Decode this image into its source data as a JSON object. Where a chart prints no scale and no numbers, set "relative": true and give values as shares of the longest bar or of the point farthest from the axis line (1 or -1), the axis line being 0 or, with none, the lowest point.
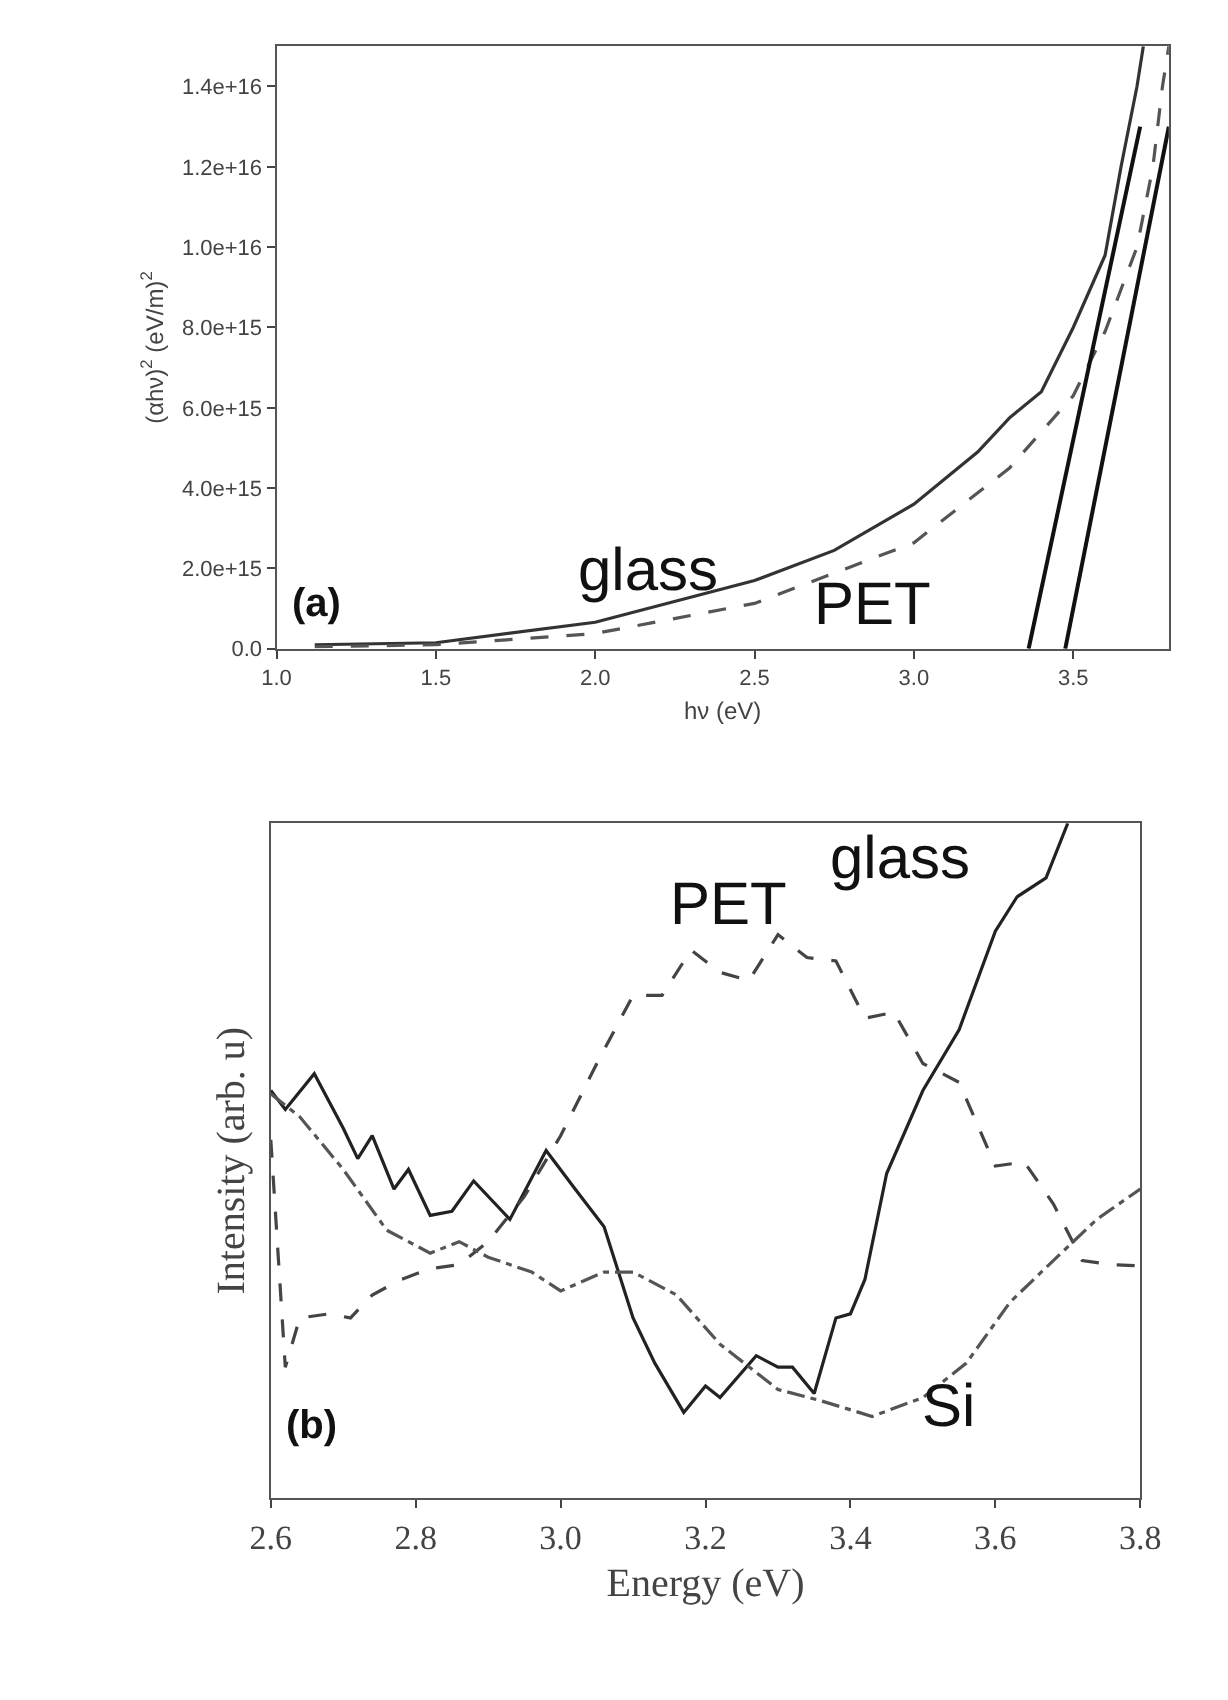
{
  "chart_data": [
    {
      "type": "line",
      "xlabel": "hν (eV)",
      "ylabel": "(αhν)$^{2}$ (eV/m)$^{2}$",
      "xlim": [
        1.0,
        3.8
      ],
      "ylim": [
        0,
        1.5e+16
      ],
      "xticks": [
        {
          "value": 1.0,
          "label": "1.0"
        },
        {
          "value": 1.5,
          "label": "1.5"
        },
        {
          "value": 2.0,
          "label": "2.0"
        },
        {
          "value": 2.5,
          "label": "2.5"
        },
        {
          "value": 3.0,
          "label": "3.0"
        },
        {
          "value": 3.5,
          "label": "3.5"
        }
      ],
      "yticks": [
        {
          "value": 0,
          "label": "0.0"
        },
        {
          "value": 2000000000000000.0,
          "label": "2.0e+15"
        },
        {
          "value": 4000000000000000.0,
          "label": "4.0e+15"
        },
        {
          "value": 6000000000000000.0,
          "label": "6.0e+15"
        },
        {
          "value": 8000000000000000.0,
          "label": "8.0e+15"
        },
        {
          "value": 1e+16,
          "label": "1.0e+16"
        },
        {
          "value": 1.2e+16,
          "label": "1.2e+16"
        },
        {
          "value": 1.4e+16,
          "label": "1.4e+16"
        }
      ],
      "marker": "none",
      "annotations": [
        "(a)"
      ],
      "series": [
        {
          "name": "glass",
          "color": "#333333",
          "line_style": "solid",
          "x": [
            1.12,
            1.5,
            2.0,
            2.5,
            2.75,
            3.0,
            3.2,
            3.3,
            3.4,
            3.5,
            3.6,
            3.65,
            3.7,
            3.72
          ],
          "values": [
            100000000000000.0,
            150000000000000.0,
            660000000000000.0,
            1700000000000000.0,
            2450000000000000.0,
            3600000000000000.0,
            4900000000000000.0,
            5750000000000000.0,
            6400000000000000.0,
            8000000000000000.0,
            9800000000000000.0,
            1.2e+16,
            1.4e+16,
            1.5e+16
          ]
        },
        {
          "name": "PET",
          "color": "#555555",
          "line_style": "dashed",
          "x": [
            1.12,
            1.5,
            2.0,
            2.5,
            3.0,
            3.3,
            3.5,
            3.6,
            3.7,
            3.75,
            3.78,
            3.8
          ],
          "values": [
            50000000000000.0,
            100000000000000.0,
            380000000000000.0,
            1130000000000000.0,
            2640000000000000.0,
            4500000000000000.0,
            6300000000000000.0,
            7900000000000000.0,
            1e+16,
            1.2e+16,
            1.4e+16,
            1.5e+16
          ]
        },
        {
          "color": "#111111",
          "line_style": "solid",
          "x": [
            3.36,
            3.71
          ],
          "values": [
            0,
            1.3e+16
          ]
        },
        {
          "color": "#111111",
          "line_style": "solid",
          "x": [
            3.475,
            3.8
          ],
          "values": [
            0,
            1.3e+16
          ]
        }
      ]
    },
    {
      "type": "line",
      "xlabel": "Energy (eV)",
      "ylabel": "Intensity (arb. u)",
      "relative": true,
      "xlim": [
        2.6,
        3.8
      ],
      "xticks": [
        {
          "value": 2.6,
          "label": "2.6"
        },
        {
          "value": 2.8,
          "label": "2.8"
        },
        {
          "value": 3.0,
          "label": "3.0"
        },
        {
          "value": 3.2,
          "label": "3.2"
        },
        {
          "value": 3.4,
          "label": "3.4"
        },
        {
          "value": 3.6,
          "label": "3.6"
        },
        {
          "value": 3.8,
          "label": "3.8"
        }
      ],
      "marker": "none",
      "annotations": [
        "(b)"
      ],
      "series": [
        {
          "name": "glass",
          "color": "#222222",
          "line_style": "solid",
          "x": [
            2.6,
            2.62,
            2.66,
            2.7,
            2.72,
            2.74,
            2.77,
            2.79,
            2.82,
            2.85,
            2.88,
            2.93,
            2.98,
            3.02,
            3.06,
            3.1,
            3.13,
            3.17,
            3.2,
            3.22,
            3.27,
            3.3,
            3.32,
            3.35,
            3.38,
            3.4,
            3.42,
            3.45,
            3.5,
            3.55,
            3.6,
            3.63,
            3.67,
            3.7
          ],
          "values": [
            0.604,
            0.576,
            0.629,
            0.548,
            0.503,
            0.537,
            0.458,
            0.487,
            0.419,
            0.425,
            0.47,
            0.413,
            0.515,
            0.458,
            0.402,
            0.267,
            0.2,
            0.127,
            0.166,
            0.149,
            0.211,
            0.194,
            0.194,
            0.155,
            0.267,
            0.273,
            0.324,
            0.481,
            0.604,
            0.694,
            0.84,
            0.891,
            0.919,
            1
          ]
        },
        {
          "name": "PET",
          "color": "#444444",
          "line_style": "dashed",
          "x": [
            2.6,
            2.62,
            2.64,
            2.68,
            2.71,
            2.74,
            2.78,
            2.82,
            2.86,
            2.9,
            2.95,
            3.0,
            3.05,
            3.1,
            3.14,
            3.18,
            3.22,
            3.26,
            3.3,
            3.34,
            3.38,
            3.42,
            3.46,
            3.5,
            3.55,
            3.6,
            3.64,
            3.68,
            3.72,
            3.76,
            3.8
          ],
          "values": [
            0.531,
            0.194,
            0.267,
            0.273,
            0.267,
            0.301,
            0.324,
            0.34,
            0.346,
            0.38,
            0.447,
            0.537,
            0.644,
            0.745,
            0.745,
            0.812,
            0.779,
            0.767,
            0.835,
            0.801,
            0.796,
            0.711,
            0.72,
            0.644,
            0.616,
            0.492,
            0.498,
            0.436,
            0.352,
            0.346,
            0.344
          ]
        },
        {
          "name": "Si",
          "color": "#555555",
          "line_style": "dashdot",
          "x": [
            2.6,
            2.64,
            2.7,
            2.76,
            2.82,
            2.86,
            2.9,
            2.96,
            3.0,
            3.06,
            3.1,
            3.16,
            3.22,
            3.3,
            3.36,
            3.43,
            3.5,
            3.56,
            3.62,
            3.68,
            3.74,
            3.8
          ],
          "values": [
            0.599,
            0.565,
            0.487,
            0.397,
            0.363,
            0.38,
            0.357,
            0.335,
            0.307,
            0.335,
            0.335,
            0.301,
            0.228,
            0.161,
            0.144,
            0.121,
            0.149,
            0.2,
            0.29,
            0.352,
            0.413,
            0.458
          ]
        }
      ]
    }
  ]
}
